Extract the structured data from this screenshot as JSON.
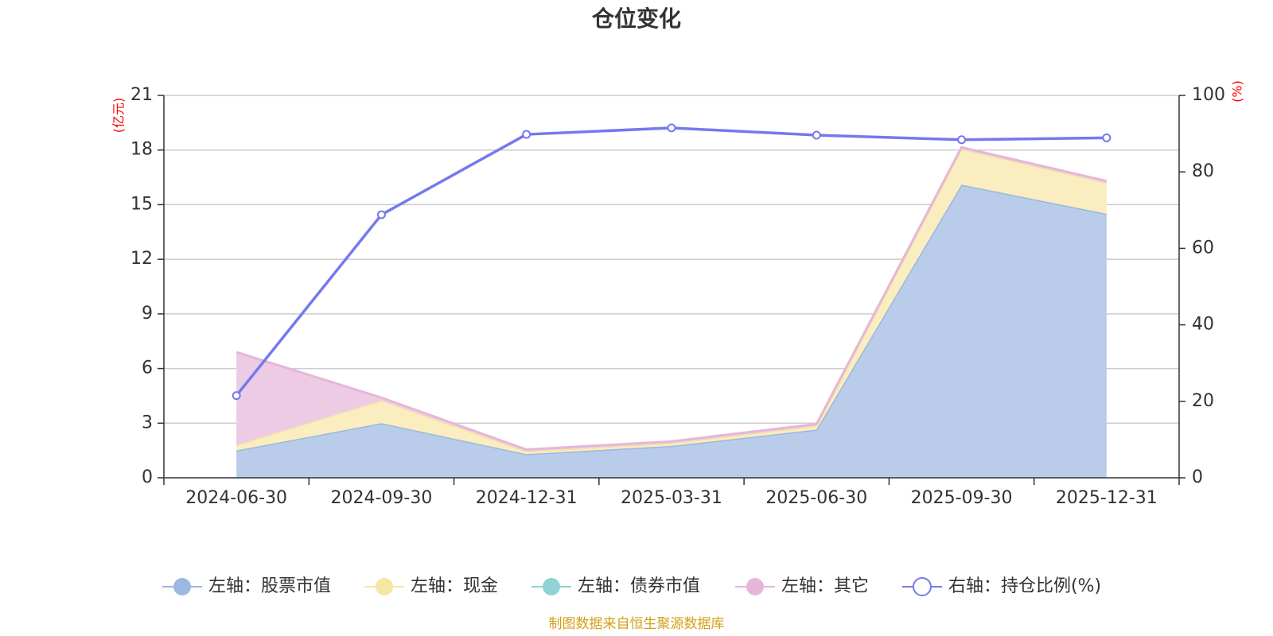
{
  "colors": {
    "stock": "#9bb8e0",
    "stock_fill": "#b9cdea",
    "cash": "#f5e6a3",
    "cash_fill": "#faedc0",
    "bond": "#8fd3d4",
    "other": "#e6b6da",
    "other_fill": "#eecbe4",
    "ratio": "#7479ee",
    "axis_unit": "#ff0000",
    "source": "#d4a017",
    "grid": "#cccccc",
    "axis": "#333333"
  },
  "chart_data": {
    "type": "area",
    "title": "仓位变化",
    "categories": [
      "2024-06-30",
      "2024-09-30",
      "2024-12-31",
      "2025-03-31",
      "2025-06-30",
      "2025-09-30",
      "2025-12-31"
    ],
    "left_axis": {
      "unit_label": "(亿元)",
      "range": [
        0,
        21
      ],
      "ticks": [
        "0",
        "3",
        "6",
        "9",
        "12",
        "15",
        "18",
        "21"
      ]
    },
    "right_axis": {
      "unit_label": "(%)",
      "range": [
        0,
        100
      ],
      "ticks": [
        "0",
        "20",
        "40",
        "60",
        "80",
        "100"
      ]
    },
    "grid": true,
    "legend_position": "bottom",
    "series": [
      {
        "name": "左轴：股票市值",
        "axis": "left",
        "kind": "stacked-area",
        "color_key": "stock",
        "values": [
          1.5,
          3.0,
          1.3,
          1.75,
          2.65,
          16.1,
          14.5
        ]
      },
      {
        "name": "左轴：现金",
        "axis": "left",
        "kind": "stacked-area",
        "color_key": "cash",
        "values": [
          0.3,
          1.25,
          0.15,
          0.15,
          0.2,
          1.95,
          1.7
        ]
      },
      {
        "name": "左轴：债券市值",
        "axis": "left",
        "kind": "stacked-area",
        "color_key": "bond",
        "values": [
          0,
          0,
          0,
          0,
          0,
          0,
          0
        ]
      },
      {
        "name": "左轴：其它",
        "axis": "left",
        "kind": "stacked-area",
        "color_key": "other",
        "values": [
          5.1,
          0.15,
          0.1,
          0.1,
          0.1,
          0.1,
          0.1
        ]
      },
      {
        "name": "右轴：持仓比例(%)",
        "axis": "right",
        "kind": "line",
        "color_key": "ratio",
        "values": [
          21.5,
          68.8,
          89.8,
          91.5,
          89.6,
          88.4,
          88.9
        ]
      }
    ]
  },
  "source_note": "制图数据来自恒生聚源数据库"
}
